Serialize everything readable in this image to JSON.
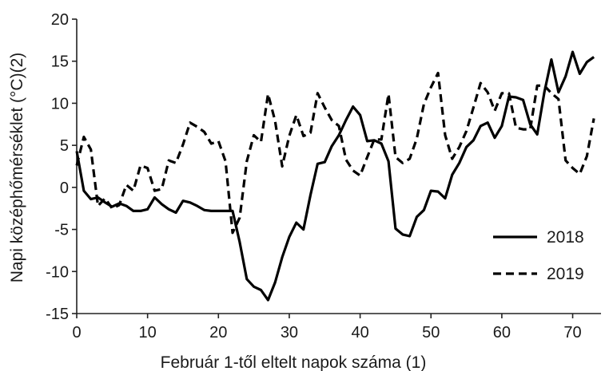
{
  "chart_data": {
    "type": "line",
    "title": "",
    "xlabel": "Február 1-től eltelt napok száma (1)",
    "ylabel": "Napi középhőmérséklet (°C)(2)",
    "xlim": [
      0,
      74
    ],
    "ylim": [
      -15,
      20
    ],
    "xticks": [
      0,
      10,
      20,
      30,
      40,
      50,
      60,
      70
    ],
    "yticks": [
      -15,
      -10,
      -5,
      0,
      5,
      10,
      15,
      20
    ],
    "xtick_labels": [
      "0",
      "10",
      "20",
      "30",
      "40",
      "50",
      "60",
      "70"
    ],
    "ytick_labels": [
      "-15",
      "-10",
      "-5",
      "0",
      "5",
      "10",
      "15",
      "20"
    ],
    "grid": false,
    "legend_position": "bottom-right",
    "x": [
      0,
      1,
      2,
      3,
      4,
      5,
      6,
      7,
      8,
      9,
      10,
      11,
      12,
      13,
      14,
      15,
      16,
      17,
      18,
      19,
      20,
      21,
      22,
      23,
      24,
      25,
      26,
      27,
      28,
      29,
      30,
      31,
      32,
      33,
      34,
      35,
      36,
      37,
      38,
      39,
      40,
      41,
      42,
      43,
      44,
      45,
      46,
      47,
      48,
      49,
      50,
      51,
      52,
      53,
      54,
      55,
      56,
      57,
      58,
      59,
      60,
      61,
      62,
      63,
      64,
      65,
      66,
      67,
      68,
      69,
      70,
      71,
      72,
      73
    ],
    "series": [
      {
        "name": "2018",
        "style": "solid",
        "color": "#000000",
        "values": [
          4.3,
          -0.4,
          -1.4,
          -1.2,
          -1.8,
          -2.3,
          -1.9,
          -2.2,
          -2.8,
          -2.8,
          -2.6,
          -1.2,
          -2.0,
          -2.6,
          -3.0,
          -1.6,
          -1.8,
          -2.2,
          -2.7,
          -2.8,
          -2.8,
          -2.8,
          -2.8,
          -6.5,
          -10.9,
          -11.8,
          -12.2,
          -13.4,
          -11.3,
          -8.3,
          -5.9,
          -4.2,
          -5.0,
          -0.9,
          2.8,
          3.0,
          4.9,
          6.2,
          8.0,
          9.6,
          8.6,
          5.5,
          5.6,
          5.2,
          3.1,
          -4.9,
          -5.6,
          -5.8,
          -3.5,
          -2.7,
          -0.4,
          -0.5,
          -1.3,
          1.5,
          2.9,
          4.8,
          5.6,
          7.3,
          7.7,
          5.9,
          7.3,
          10.8,
          10.7,
          10.4,
          7.5,
          6.3,
          11.3,
          15.2,
          11.3,
          13.2,
          16.1,
          13.5,
          14.9,
          15.5
        ]
      },
      {
        "name": "2019",
        "style": "dashed",
        "color": "#000000",
        "values": [
          2.6,
          6.0,
          4.5,
          -2.2,
          -1.3,
          -2.5,
          -2.1,
          0.3,
          -0.4,
          2.6,
          2.3,
          -0.4,
          -0.2,
          3.2,
          2.9,
          5.1,
          7.7,
          7.2,
          6.6,
          5.2,
          5.5,
          3.1,
          -5.4,
          -3.6,
          3.1,
          6.2,
          5.4,
          11.1,
          7.9,
          2.5,
          6.1,
          8.6,
          6.1,
          6.5,
          11.2,
          9.5,
          8.0,
          7.3,
          3.3,
          2.0,
          1.4,
          3.6,
          5.7,
          5.7,
          11.1,
          3.6,
          2.9,
          3.4,
          5.8,
          9.9,
          11.9,
          13.6,
          6.2,
          3.4,
          4.8,
          6.7,
          9.5,
          12.4,
          11.3,
          9.1,
          11.2,
          11.2,
          7.1,
          6.9,
          6.9,
          12.1,
          12.1,
          11.2,
          10.5,
          3.2,
          2.3,
          1.6,
          3.7,
          8.2
        ]
      }
    ]
  }
}
